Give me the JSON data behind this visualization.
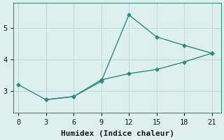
{
  "line1_x": [
    0,
    3,
    6,
    9,
    12,
    15,
    18,
    21
  ],
  "line1_y": [
    3.2,
    2.72,
    2.82,
    3.3,
    5.42,
    4.72,
    4.45,
    4.2
  ],
  "line2_x": [
    3,
    6,
    9,
    12,
    15,
    18,
    21
  ],
  "line2_y": [
    2.72,
    2.82,
    3.35,
    3.55,
    3.68,
    3.92,
    4.2
  ],
  "line_color": "#2e8b7a",
  "bg_color": "#ddf0ee",
  "grid_color": "#c0ddd9",
  "xlabel": "Humidex (Indice chaleur)",
  "xticks": [
    0,
    3,
    6,
    9,
    12,
    15,
    18,
    21
  ],
  "yticks": [
    3,
    4,
    5
  ],
  "ylim": [
    2.3,
    5.8
  ],
  "xlim": [
    -0.5,
    22.0
  ],
  "marker": "D",
  "markersize": 2.5,
  "linewidth": 1.0,
  "xlabel_fontsize": 8,
  "tick_fontsize": 7.5
}
